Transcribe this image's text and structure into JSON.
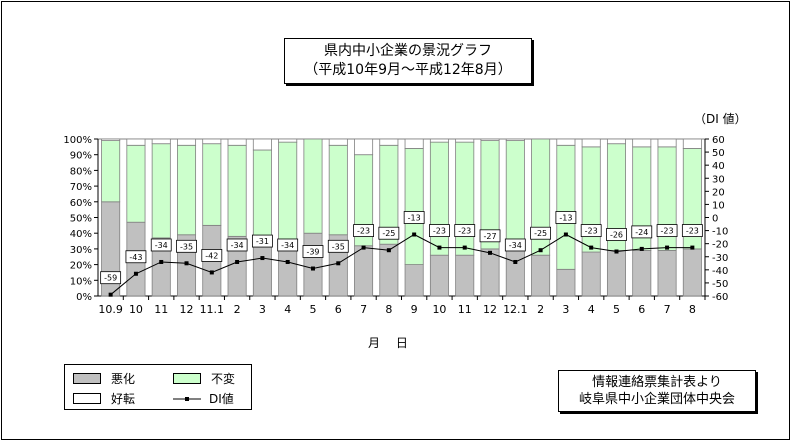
{
  "title": {
    "line1": "県内中小企業の景況グラフ",
    "line2": "（平成10年9月～平成12年8月）"
  },
  "unit_label": "（DI 値）",
  "xlabel": "月 日",
  "legend": {
    "worse": "悪化",
    "same": "不変",
    "better": "好転",
    "di": "DI値"
  },
  "source": {
    "line1": "情報連絡票集計表より",
    "line2": "岐阜県中小企業団体中央会"
  },
  "colors": {
    "worse": "#c0c0c0",
    "same": "#ccffcc",
    "better": "#ffffff",
    "di": "#000000"
  },
  "chart_data": {
    "type": "bar",
    "stacked": true,
    "percent": true,
    "categories": [
      "10.9",
      "10",
      "11",
      "12",
      "11.1",
      "2",
      "3",
      "4",
      "5",
      "6",
      "7",
      "8",
      "9",
      "10",
      "11",
      "12",
      "12.1",
      "2",
      "3",
      "4",
      "5",
      "6",
      "7",
      "8"
    ],
    "series": [
      {
        "name": "悪化",
        "values": [
          60,
          47,
          37,
          39,
          45,
          38,
          37,
          36,
          40,
          39,
          32,
          33,
          20,
          26,
          26,
          30,
          36,
          26,
          17,
          28,
          29,
          29,
          29,
          30
        ]
      },
      {
        "name": "不変",
        "values": [
          39,
          49,
          60,
          57,
          52,
          58,
          56,
          62,
          60,
          57,
          58,
          63,
          74,
          72,
          72,
          69,
          63,
          74,
          79,
          67,
          68,
          66,
          66,
          64
        ]
      },
      {
        "name": "好転",
        "values": [
          1,
          4,
          3,
          4,
          3,
          4,
          7,
          2,
          0,
          4,
          10,
          4,
          6,
          2,
          2,
          1,
          1,
          0,
          4,
          5,
          3,
          5,
          5,
          6
        ]
      },
      {
        "name": "DI値",
        "type": "line",
        "axis": "right",
        "values": [
          -59,
          -43,
          -34,
          -35,
          -42,
          -34,
          -31,
          -34,
          -39,
          -35,
          -23,
          -25,
          -13,
          -23,
          -23,
          -27,
          -34,
          -25,
          -13,
          -23,
          -26,
          -24,
          -23,
          -23
        ]
      }
    ],
    "y_left": {
      "min": 0,
      "max": 100,
      "step": 10,
      "format": "percent"
    },
    "y_right": {
      "min": -60,
      "max": 60,
      "step": 10
    },
    "legend_position": "bottom-left"
  }
}
